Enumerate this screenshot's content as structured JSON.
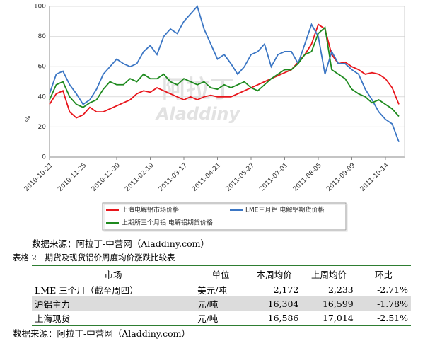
{
  "chart_data": {
    "type": "line",
    "y_label": "%",
    "watermark": [
      "阿拉丁",
      "Aladdiny"
    ],
    "categories": [
      "2010-10-21",
      null,
      null,
      null,
      null,
      "2010-11-25",
      null,
      null,
      null,
      null,
      "2010-12-30",
      null,
      null,
      null,
      null,
      "2011-02-10",
      null,
      null,
      null,
      null,
      "2011-03-17",
      null,
      null,
      null,
      null,
      "2011-04-21",
      null,
      null,
      null,
      null,
      "2011-05-27",
      null,
      null,
      null,
      null,
      "2011-07-01",
      null,
      null,
      null,
      null,
      "2011-08-05",
      null,
      null,
      null,
      null,
      "2011-09-09",
      null,
      null,
      null,
      null,
      "2011-10-14",
      null,
      null
    ],
    "series": [
      {
        "name": "上海电解铝市场价格",
        "color": "#e8151b",
        "values": [
          35,
          42,
          44,
          30,
          26,
          28,
          33,
          30,
          30,
          32,
          34,
          36,
          38,
          42,
          44,
          43,
          46,
          44,
          42,
          40,
          38,
          40,
          38,
          40,
          41,
          40,
          40,
          40,
          42,
          44,
          46,
          48,
          50,
          52,
          54,
          56,
          58,
          63,
          68,
          75,
          88,
          85,
          68,
          62,
          63,
          60,
          58,
          55,
          56,
          55,
          52,
          46,
          35
        ]
      },
      {
        "name": "LME三月铝 电解铝期货价格",
        "color": "#3b76c4",
        "values": [
          42,
          55,
          57,
          48,
          42,
          35,
          38,
          45,
          55,
          60,
          65,
          62,
          60,
          62,
          70,
          74,
          68,
          80,
          85,
          82,
          90,
          95,
          100,
          85,
          75,
          65,
          68,
          62,
          55,
          60,
          68,
          70,
          75,
          60,
          68,
          70,
          70,
          62,
          75,
          88,
          80,
          55,
          70,
          62,
          62,
          58,
          55,
          45,
          38,
          30,
          25,
          22,
          10
        ]
      },
      {
        "name": "上期所三个月铝 电解铝期货价格",
        "color": "#1e8a1e",
        "values": [
          38,
          48,
          50,
          40,
          35,
          33,
          36,
          38,
          45,
          50,
          48,
          48,
          52,
          50,
          55,
          52,
          52,
          55,
          50,
          48,
          52,
          50,
          48,
          50,
          46,
          45,
          48,
          46,
          48,
          50,
          46,
          44,
          48,
          52,
          55,
          58,
          58,
          62,
          68,
          70,
          82,
          86,
          58,
          55,
          52,
          45,
          42,
          40,
          36,
          38,
          35,
          32,
          27
        ]
      }
    ],
    "ylim": [
      0,
      100
    ],
    "yticks": [
      0,
      20,
      40,
      60,
      80,
      100
    ],
    "grid": true
  },
  "source_1": "数据来源：阿拉丁-中营网（Aladdiny.com）",
  "table_caption": "表格 2　期货及现货铝价周度均价涨跌比较表",
  "table": {
    "header": [
      "市场",
      "单位",
      "本周均价",
      "上周均价",
      "环比"
    ],
    "rows": [
      [
        "LME 三个月（截至周四）",
        "美元/吨",
        "2,172",
        "2,233",
        "-2.71%"
      ],
      [
        "沪铝主力",
        "元/吨",
        "16,304",
        "16,599",
        "-1.78%"
      ],
      [
        "上海现货",
        "元/吨",
        "16,586",
        "17,014",
        "-2.51%"
      ]
    ]
  },
  "source_2": "数据来源：阿拉丁-中营网（Aladdiny.com）"
}
